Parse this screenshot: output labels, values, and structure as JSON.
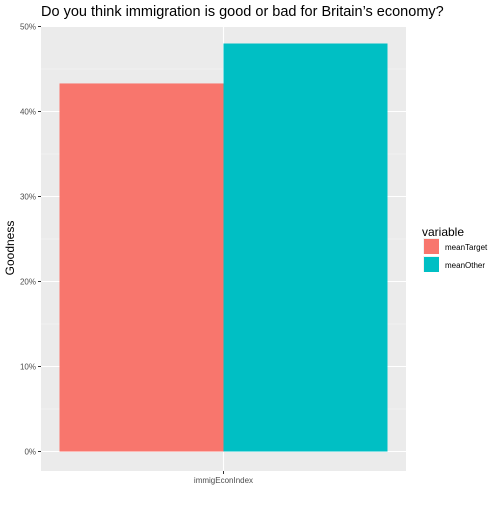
{
  "chart_data": {
    "type": "bar",
    "title": "Do you think immigration is good or bad for Britain’s economy?",
    "xlabel": "",
    "ylabel": "Goodness",
    "categories": [
      "immigEconIndex"
    ],
    "y_tick_labels": [
      "0%",
      "10%",
      "20%",
      "30%",
      "40%",
      "50%"
    ],
    "ylim": [
      0,
      0.5
    ],
    "grid": true,
    "legend": {
      "title": "variable",
      "placement": "right"
    },
    "series": [
      {
        "name": "meanTarget",
        "color": "#F8766D",
        "values": [
          0.433
        ]
      },
      {
        "name": "meanOther",
        "color": "#00BFC4",
        "values": [
          0.48
        ]
      }
    ]
  }
}
